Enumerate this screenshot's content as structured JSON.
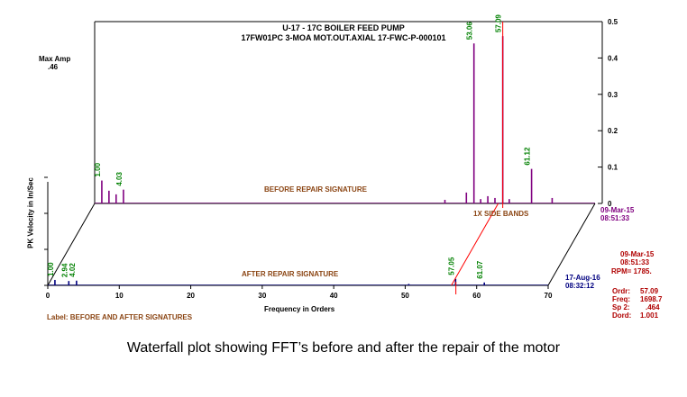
{
  "header": {
    "title": "U-17 - 17C BOILER FEED PUMP",
    "subtitle": "17FW01PC 3-MOA   MOT.OUT.AXIAL  17-FWC-P-000101"
  },
  "caption": "Waterfall plot showing FFT’s before and after the repair of the motor",
  "readout": {
    "date": "09-Mar-15",
    "time": "08:51:33",
    "rpm": "RPM= 1785.",
    "ordr_label": "Ordr:",
    "ordr_value": "57.09",
    "freq_label": "Freq:",
    "freq_value": "1698.7",
    "sp2_label": "Sp 2:",
    "sp2_value": ".464",
    "dord_label": "Dord:",
    "dord_value": "1.001"
  },
  "colors": {
    "before": "#800080",
    "after": "#000080",
    "peak_labels": "#008000",
    "text_red": "#b00000",
    "cursor": "#ff0000",
    "annotation": "#8b4513"
  },
  "chart_data": {
    "type": "line",
    "subtype": "waterfall",
    "title": "U-17 - 17C BOILER FEED PUMP",
    "subtitle": "17FW01PC 3-MOA   MOT.OUT.AXIAL  17-FWC-P-000101",
    "xlabel": "Frequency in Orders",
    "ylabel": "PK Velocity in In/Sec",
    "xlim": [
      0,
      70
    ],
    "ylim": [
      0,
      0.5
    ],
    "x_ticks": [
      "0",
      "10",
      "20",
      "30",
      "40",
      "50",
      "60",
      "70"
    ],
    "y_ticks": [
      "0",
      "0.1",
      "0.2",
      "0.3",
      "0.4",
      "0.5"
    ],
    "max_amp_label": "Max Amp",
    "max_amp_value": ".46",
    "chart_label": "Label:   BEFORE AND AFTER SIGNATURES",
    "annotation": "1X SIDE BANDS",
    "cursor_order": 57.09,
    "series": [
      {
        "name": "BEFORE REPAIR SIGNATURE",
        "date": "09-Mar-15",
        "time": "08:51:33",
        "peaks": [
          {
            "x": 1.0,
            "y": 0.063,
            "label": "1.00"
          },
          {
            "x": 2.0,
            "y": 0.035
          },
          {
            "x": 3.0,
            "y": 0.025
          },
          {
            "x": 4.03,
            "y": 0.038,
            "label": "4.03"
          },
          {
            "x": 49.0,
            "y": 0.01
          },
          {
            "x": 52.0,
            "y": 0.03
          },
          {
            "x": 53.06,
            "y": 0.44,
            "label": "53.06"
          },
          {
            "x": 54.0,
            "y": 0.012
          },
          {
            "x": 55.0,
            "y": 0.02
          },
          {
            "x": 56.0,
            "y": 0.015
          },
          {
            "x": 57.09,
            "y": 0.46,
            "label": "57.09"
          },
          {
            "x": 58.0,
            "y": 0.012
          },
          {
            "x": 61.12,
            "y": 0.095,
            "label": "61.12"
          },
          {
            "x": 64.0,
            "y": 0.015
          }
        ]
      },
      {
        "name": "AFTER REPAIR SIGNATURE",
        "date": "17-Aug-16",
        "time": "08:32:12",
        "peaks": [
          {
            "x": 1.0,
            "y": 0.015,
            "label": "1.00"
          },
          {
            "x": 2.94,
            "y": 0.012,
            "label": "2.94"
          },
          {
            "x": 4.02,
            "y": 0.013,
            "label": "4.02"
          },
          {
            "x": 50.5,
            "y": 0.004
          },
          {
            "x": 57.05,
            "y": 0.018,
            "label": "57.05"
          },
          {
            "x": 61.07,
            "y": 0.008,
            "label": "61.07"
          }
        ]
      }
    ]
  }
}
